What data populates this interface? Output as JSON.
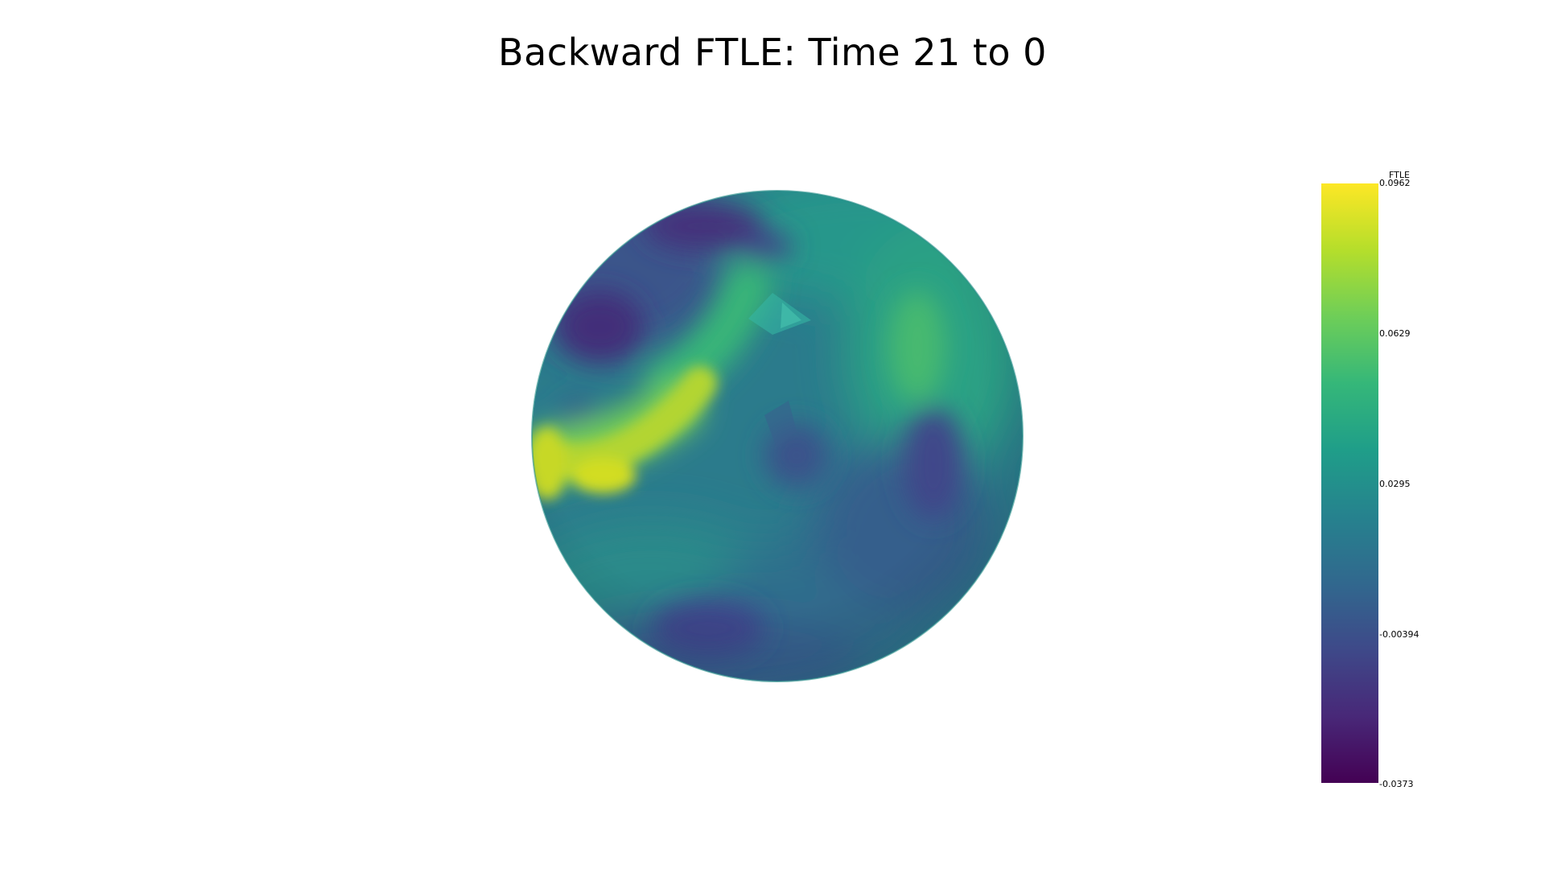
{
  "title": "Backward FTLE: Time 21 to 0",
  "colorbar": {
    "title": "FTLE",
    "colormap": "viridis",
    "range": [
      -0.0373,
      0.0962
    ],
    "ticks": [
      "0.0962",
      "0.0629",
      "0.0295",
      "-0.00394",
      "-0.0373"
    ],
    "stops": [
      "#fde725",
      "#b5de2b",
      "#6ece58",
      "#35b779",
      "#1f9e89",
      "#26828e",
      "#31688e",
      "#3e4989",
      "#482878",
      "#440154"
    ]
  }
}
